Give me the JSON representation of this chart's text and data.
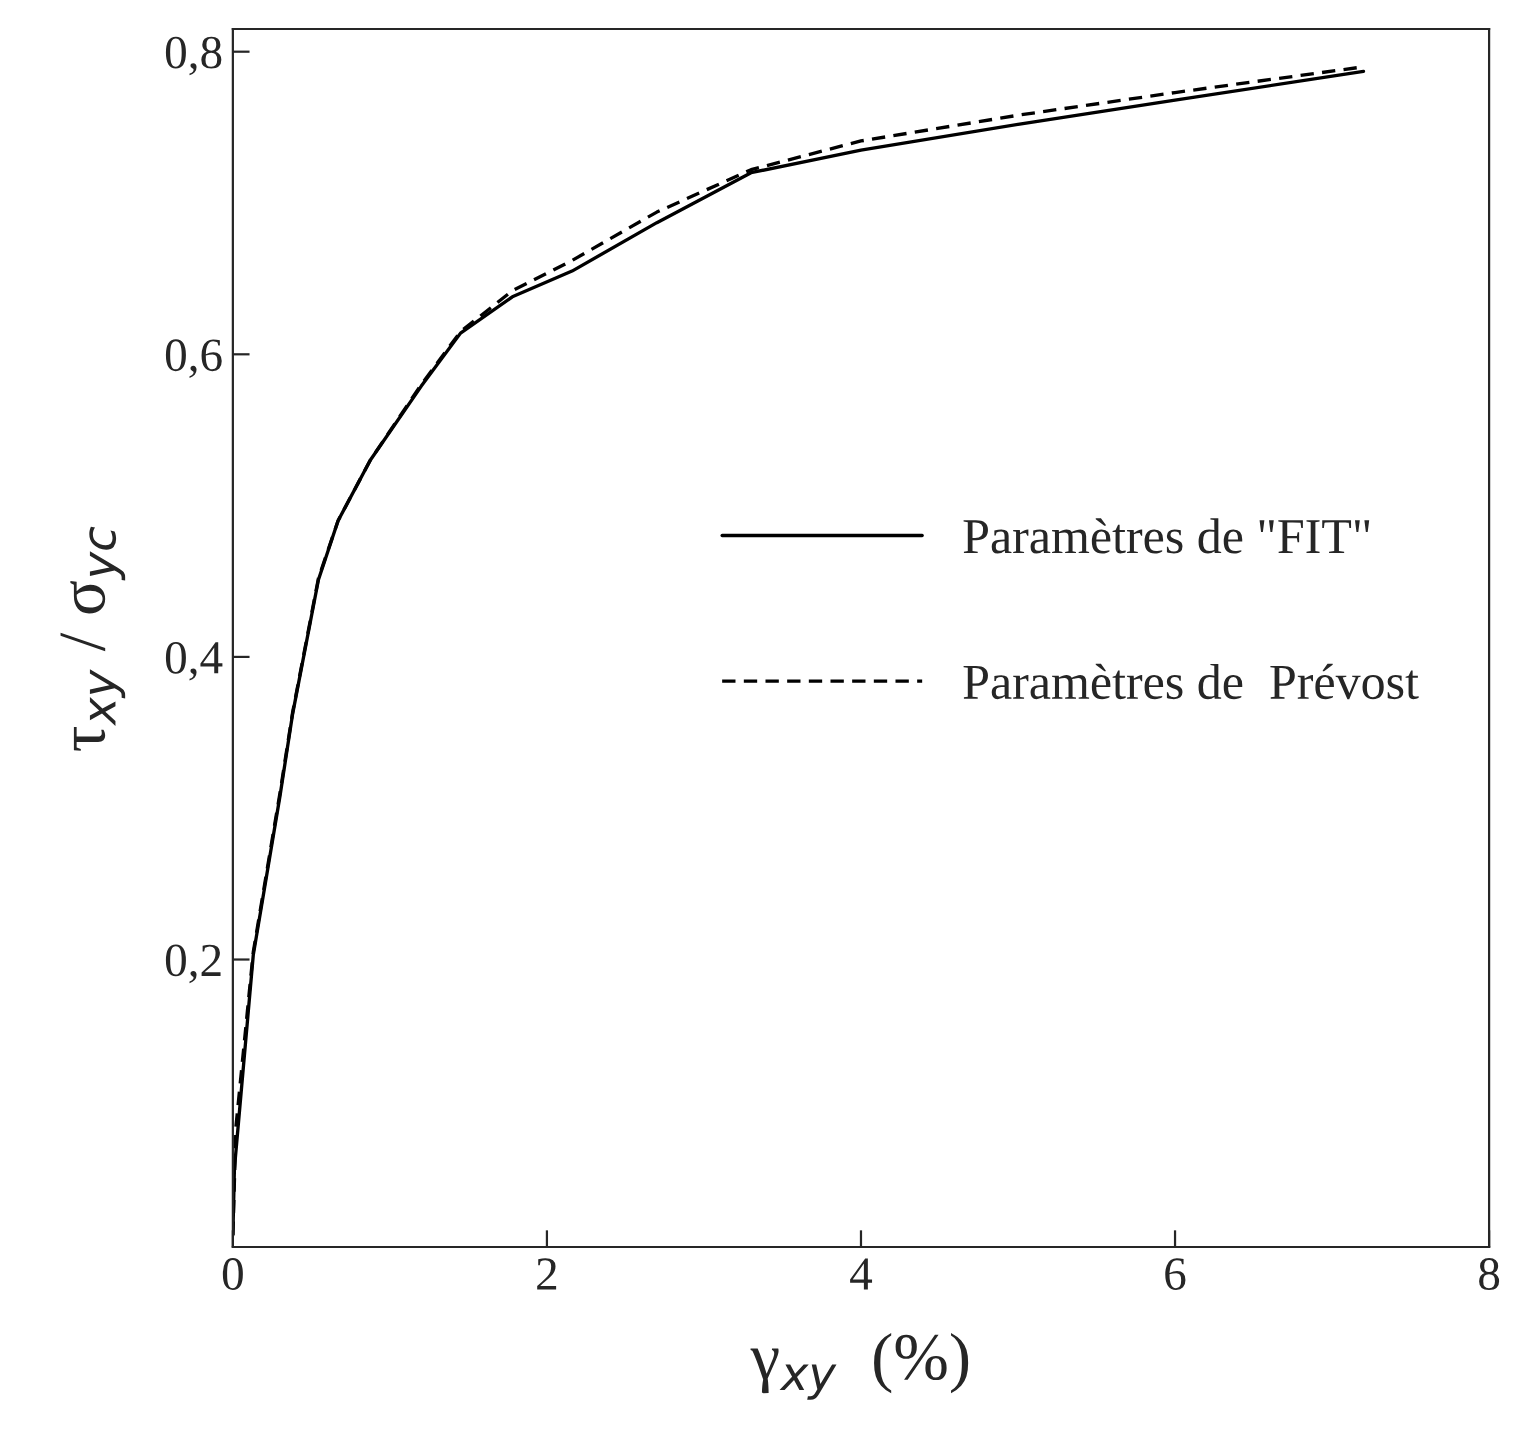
{
  "chart_data": {
    "type": "line",
    "xlabel": "γ$_{xy}$  (%)",
    "ylabel": "τ$_{xy}$ / σ$_{yc}$",
    "series": [
      {
        "name": "Paramètres de \"FIT\"",
        "color": "#000000",
        "line_style": "solid",
        "x": [
          0,
          0.01,
          0.13,
          0.3,
          0.38,
          0.545,
          0.67,
          0.875,
          1.2,
          1.45,
          1.78,
          2.16,
          2.7,
          3.3,
          4.0,
          5.0,
          6.0,
          7.2
        ],
        "values": [
          0.018,
          0.062,
          0.203,
          0.308,
          0.362,
          0.451,
          0.49,
          0.53,
          0.579,
          0.614,
          0.638,
          0.655,
          0.687,
          0.72,
          0.735,
          0.752,
          0.768,
          0.787
        ]
      },
      {
        "name": "Paramètres de  Prévost",
        "color": "#000000",
        "line_style": "dashed",
        "x": [
          0,
          0.02,
          0.13,
          0.3,
          0.38,
          0.545,
          0.67,
          0.875,
          1.2,
          1.45,
          1.78,
          2.16,
          2.7,
          3.3,
          4.0,
          5.0,
          6.0,
          7.2
        ],
        "values": [
          0.018,
          0.09,
          0.205,
          0.31,
          0.363,
          0.452,
          0.49,
          0.53,
          0.58,
          0.615,
          0.642,
          0.662,
          0.694,
          0.722,
          0.741,
          0.758,
          0.773,
          0.79
        ]
      }
    ],
    "xlim": [
      0,
      8
    ],
    "ylim": [
      0.01,
      0.815
    ],
    "xticks": [
      0,
      2,
      4,
      6,
      8
    ],
    "yticks": [
      {
        "value": 0.2,
        "label": "0,2"
      },
      {
        "value": 0.4,
        "label": "0,4"
      },
      {
        "value": 0.6,
        "label": "0,6"
      },
      {
        "value": 0.8,
        "label": "0,8"
      }
    ],
    "legend": "center right",
    "grid": false
  }
}
